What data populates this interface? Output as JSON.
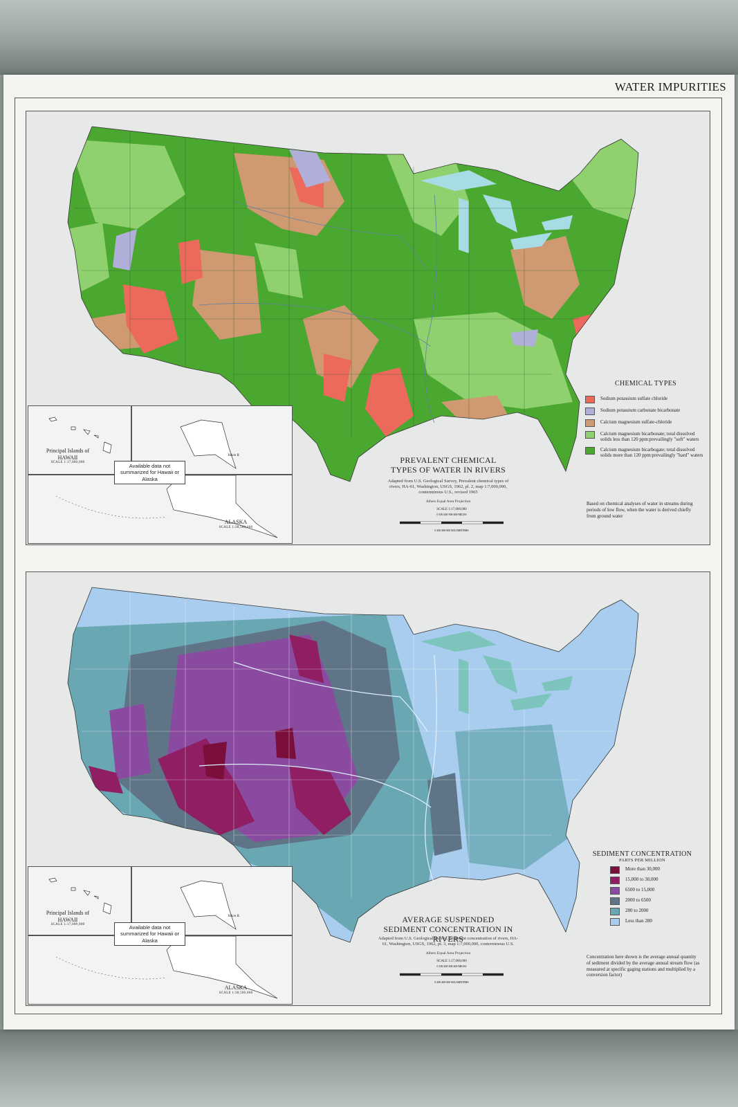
{
  "page_title": "WATER IMPURITIES",
  "inset": {
    "hawaii_label": "Principal Islands of HAWAII",
    "hawaii_scale": "SCALE 1:17,000,000",
    "alaska_label": "ALASKA",
    "alaska_scale": "SCALE 1:38,500,000",
    "not_summarized": "Available data not summarized for Hawaii or Alaska",
    "yukon_label": "Yukon R."
  },
  "top_map": {
    "title": "PREVALENT CHEMICAL TYPES OF WATER IN RIVERS",
    "source": "Adapted from U.S. Geological Survey, Prevalent chemical types of rivers, HA-61, Washington, USGS, 1962, pl. 2, map 1:7,000,000, conterminous U.S., revised 1965",
    "projection": "Albers Equal Area Projection",
    "scale": "SCALE 1:17,000,000",
    "scale_ticks_miles": "0  100  200  300  400 MILES",
    "scale_ticks_km": "0  200  400  600 KILOMETERS",
    "legend_title": "CHEMICAL TYPES",
    "legend": [
      {
        "label": "Sodium potassium sulfate chloride",
        "color": "#ec6a5c"
      },
      {
        "label": "Sodium potassium carbonate bicarbonate",
        "color": "#b0afd9"
      },
      {
        "label": "Calcium magnesium sulfate-chloride",
        "color": "#cf9a72"
      },
      {
        "label": "Calcium magnesium bicarbonate; total dissolved solids less than 120 ppm:prevailingly \"soft\" waters",
        "color": "#8fd16e"
      },
      {
        "label": "Calcium magnesium bicarbogate; total dissolved solids more than 120 ppm:prevailingly \"hard\" waters",
        "color": "#4aa72f"
      }
    ],
    "note": "Based on chemical analyses of water in streams during periods of low flow, when the water is derived chiefly from ground water"
  },
  "bottom_map": {
    "title": "AVERAGE SUSPENDED SEDIMENT CONCENTRATION IN RIVERS",
    "source": "Adapted from U.S. Geological Survey, Sediment concentration of rivers, HA-61, Washington, USGS, 1962, pl. 3, map 1:7,000,000, conterminous U.S.",
    "projection": "Albers Equal Area Projection",
    "scale": "SCALE 1:17,000,000",
    "scale_ticks_miles": "0  100  200  300  400 MILES",
    "scale_ticks_km": "0  200  400  600 KILOMETERS",
    "legend_title": "SEDIMENT CONCENTRATION",
    "legend_subtitle": "PARTS PER MILLION",
    "legend": [
      {
        "label": "More than 30,000",
        "color": "#7a0f3c"
      },
      {
        "label": "15,000 to 30,000",
        "color": "#8f1f62"
      },
      {
        "label": "6500 to 15,000",
        "color": "#8a4a9f"
      },
      {
        "label": "2000 to 6500",
        "color": "#5f7587"
      },
      {
        "label": "280 to 2000",
        "color": "#69a7b3"
      },
      {
        "label": "Less than 280",
        "color": "#a9cdee"
      }
    ],
    "note": "Concentration here shown is the average annual quantity of sediment divided by the average annual stream flow (as measured at specific gaging stations and multiplied by a conversion factor)"
  }
}
